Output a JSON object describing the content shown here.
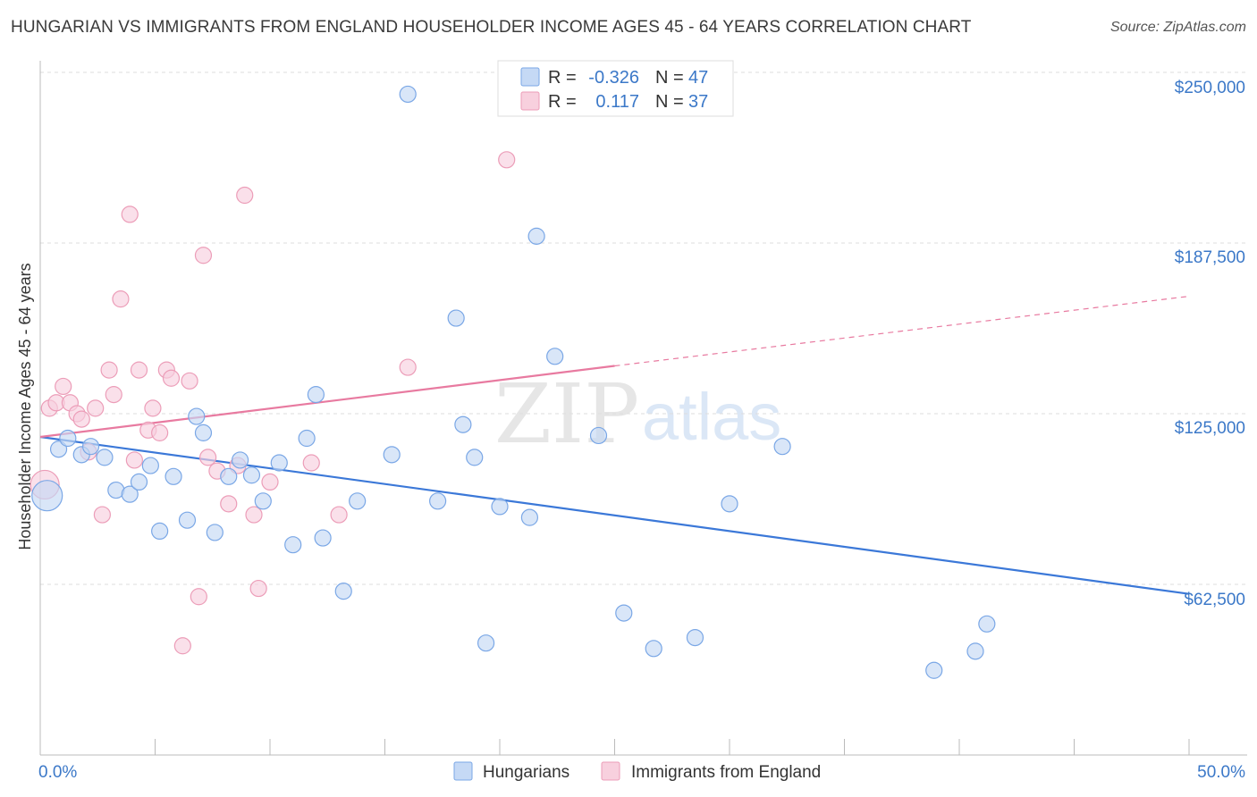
{
  "title": "HUNGARIAN VS IMMIGRANTS FROM ENGLAND HOUSEHOLDER INCOME AGES 45 - 64 YEARS CORRELATION CHART",
  "source": "Source: ZipAtlas.com",
  "watermark": {
    "zip": "ZIP",
    "atlas": "atlas"
  },
  "colors": {
    "blue": "#3b78d8",
    "blue_fill": "#c5d9f5",
    "pink": "#e87aa0",
    "pink_fill": "#f8d0de",
    "tick_text": "#3b78c8",
    "grid": "#dddddd"
  },
  "legend": {
    "r_label": "R =",
    "n_label": "N =",
    "rows": [
      {
        "series": "Hungarians",
        "r": "-0.326",
        "n": "47"
      },
      {
        "series": "Immigrants from England",
        "r": "0.117",
        "n": "37"
      }
    ]
  },
  "bottom_legend": [
    "Hungarians",
    "Immigrants from England"
  ],
  "chart_data": {
    "type": "scatter",
    "title": "HUNGARIAN VS IMMIGRANTS FROM ENGLAND HOUSEHOLDER INCOME AGES 45 - 64 YEARS CORRELATION CHART",
    "xlabel": "",
    "ylabel": "Householder Income Ages 45 - 64 years",
    "xlim": [
      0,
      50
    ],
    "ylim": [
      0,
      262500
    ],
    "x_tick_labels": [
      "0.0%",
      "50.0%"
    ],
    "y_ticks": [
      62500,
      125000,
      187500,
      250000
    ],
    "y_tick_labels": [
      "$62,500",
      "$125,000",
      "$187,500",
      "$250,000"
    ],
    "grid": true,
    "legend_position": "top-center",
    "series": [
      {
        "name": "Hungarians",
        "color": "#3b78d8",
        "points": [
          [
            0.3,
            95000
          ],
          [
            0.8,
            112000
          ],
          [
            1.2,
            116000
          ],
          [
            1.8,
            110000
          ],
          [
            2.2,
            113000
          ],
          [
            2.8,
            109000
          ],
          [
            3.3,
            97000
          ],
          [
            3.9,
            95500
          ],
          [
            4.3,
            100000
          ],
          [
            4.8,
            106000
          ],
          [
            5.2,
            82000
          ],
          [
            5.8,
            102000
          ],
          [
            6.4,
            86000
          ],
          [
            6.8,
            124000
          ],
          [
            7.1,
            118000
          ],
          [
            7.6,
            81500
          ],
          [
            8.2,
            102000
          ],
          [
            8.7,
            108000
          ],
          [
            9.2,
            102500
          ],
          [
            9.7,
            93000
          ],
          [
            10.4,
            107000
          ],
          [
            11.0,
            77000
          ],
          [
            11.6,
            116000
          ],
          [
            12.0,
            132000
          ],
          [
            12.3,
            79500
          ],
          [
            13.2,
            60000
          ],
          [
            13.8,
            93000
          ],
          [
            15.3,
            110000
          ],
          [
            16.0,
            242000
          ],
          [
            17.3,
            93000
          ],
          [
            18.1,
            160000
          ],
          [
            18.4,
            121000
          ],
          [
            18.9,
            109000
          ],
          [
            19.4,
            41000
          ],
          [
            20.0,
            91000
          ],
          [
            21.3,
            87000
          ],
          [
            21.6,
            190000
          ],
          [
            22.4,
            146000
          ],
          [
            24.3,
            117000
          ],
          [
            25.4,
            52000
          ],
          [
            26.7,
            39000
          ],
          [
            28.5,
            43000
          ],
          [
            30.0,
            92000
          ],
          [
            32.3,
            113000
          ],
          [
            38.9,
            31000
          ],
          [
            40.7,
            38000
          ],
          [
            41.2,
            48000
          ]
        ],
        "trend": {
          "x": [
            0,
            50
          ],
          "y": [
            116500,
            59000
          ]
        }
      },
      {
        "name": "Immigrants from England",
        "color": "#e87aa0",
        "points": [
          [
            0.2,
            99000
          ],
          [
            0.4,
            127000
          ],
          [
            0.7,
            129000
          ],
          [
            1.0,
            135000
          ],
          [
            1.3,
            129000
          ],
          [
            1.6,
            125000
          ],
          [
            1.8,
            123000
          ],
          [
            2.1,
            111000
          ],
          [
            2.4,
            127000
          ],
          [
            2.7,
            88000
          ],
          [
            3.0,
            141000
          ],
          [
            3.2,
            132000
          ],
          [
            3.5,
            167000
          ],
          [
            3.9,
            198000
          ],
          [
            4.1,
            108000
          ],
          [
            4.3,
            141000
          ],
          [
            4.7,
            119000
          ],
          [
            4.9,
            127000
          ],
          [
            5.2,
            118000
          ],
          [
            5.5,
            141000
          ],
          [
            5.7,
            138000
          ],
          [
            6.2,
            40000
          ],
          [
            6.5,
            137000
          ],
          [
            6.9,
            58000
          ],
          [
            7.1,
            183000
          ],
          [
            7.3,
            109000
          ],
          [
            7.7,
            104000
          ],
          [
            8.2,
            92000
          ],
          [
            8.6,
            106000
          ],
          [
            8.9,
            205000
          ],
          [
            9.3,
            88000
          ],
          [
            9.5,
            61000
          ],
          [
            10.0,
            100000
          ],
          [
            11.8,
            107000
          ],
          [
            13.0,
            88000
          ],
          [
            16.0,
            142000
          ],
          [
            20.3,
            218000
          ]
        ],
        "trend": {
          "x": [
            0,
            25
          ],
          "y": [
            116500,
            142500
          ],
          "dashed_extension": {
            "x": [
              25,
              50
            ],
            "y": [
              142500,
              168000
            ]
          }
        }
      }
    ]
  }
}
